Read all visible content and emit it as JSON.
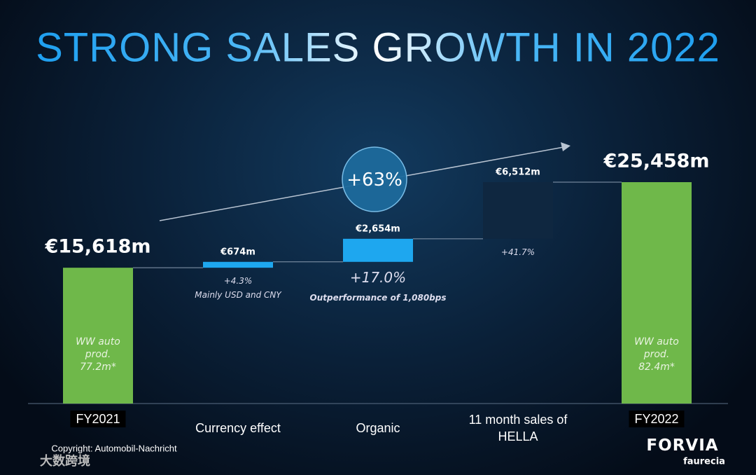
{
  "title": "STRONG SALES GROWTH IN 2022",
  "chart_data": {
    "type": "waterfall",
    "categories": [
      "FY2021",
      "Currency effect",
      "Organic",
      "11 month sales of HELLA",
      "FY2022"
    ],
    "values": [
      15618,
      674,
      2654,
      6512,
      25458
    ],
    "value_labels": [
      "€15,618m",
      "€674m",
      "€2,654m",
      "€6,512m",
      "€25,458m"
    ],
    "totals": [
      true,
      false,
      false,
      false,
      true
    ],
    "colors": [
      "#6fb84a",
      "#1ea7ef",
      "#1ea7ef",
      "#0f2740",
      "#6fb84a"
    ],
    "growth_labels": [
      null,
      "+4.3%",
      "+17.0%",
      "+41.7%",
      null
    ],
    "notes": [
      null,
      "Mainly USD and CNY",
      "Outperformance of 1,080bps",
      null,
      null
    ],
    "bar_texts": [
      "WW auto prod. 77.2m*",
      null,
      null,
      null,
      "WW auto prod. 82.4m*"
    ],
    "overall_growth": "+63%"
  },
  "copyright": "Copyright: Automobil-Nachricht",
  "logo": {
    "name": "FORVIA",
    "sub": "faurecia"
  },
  "watermark": "大数跨境"
}
